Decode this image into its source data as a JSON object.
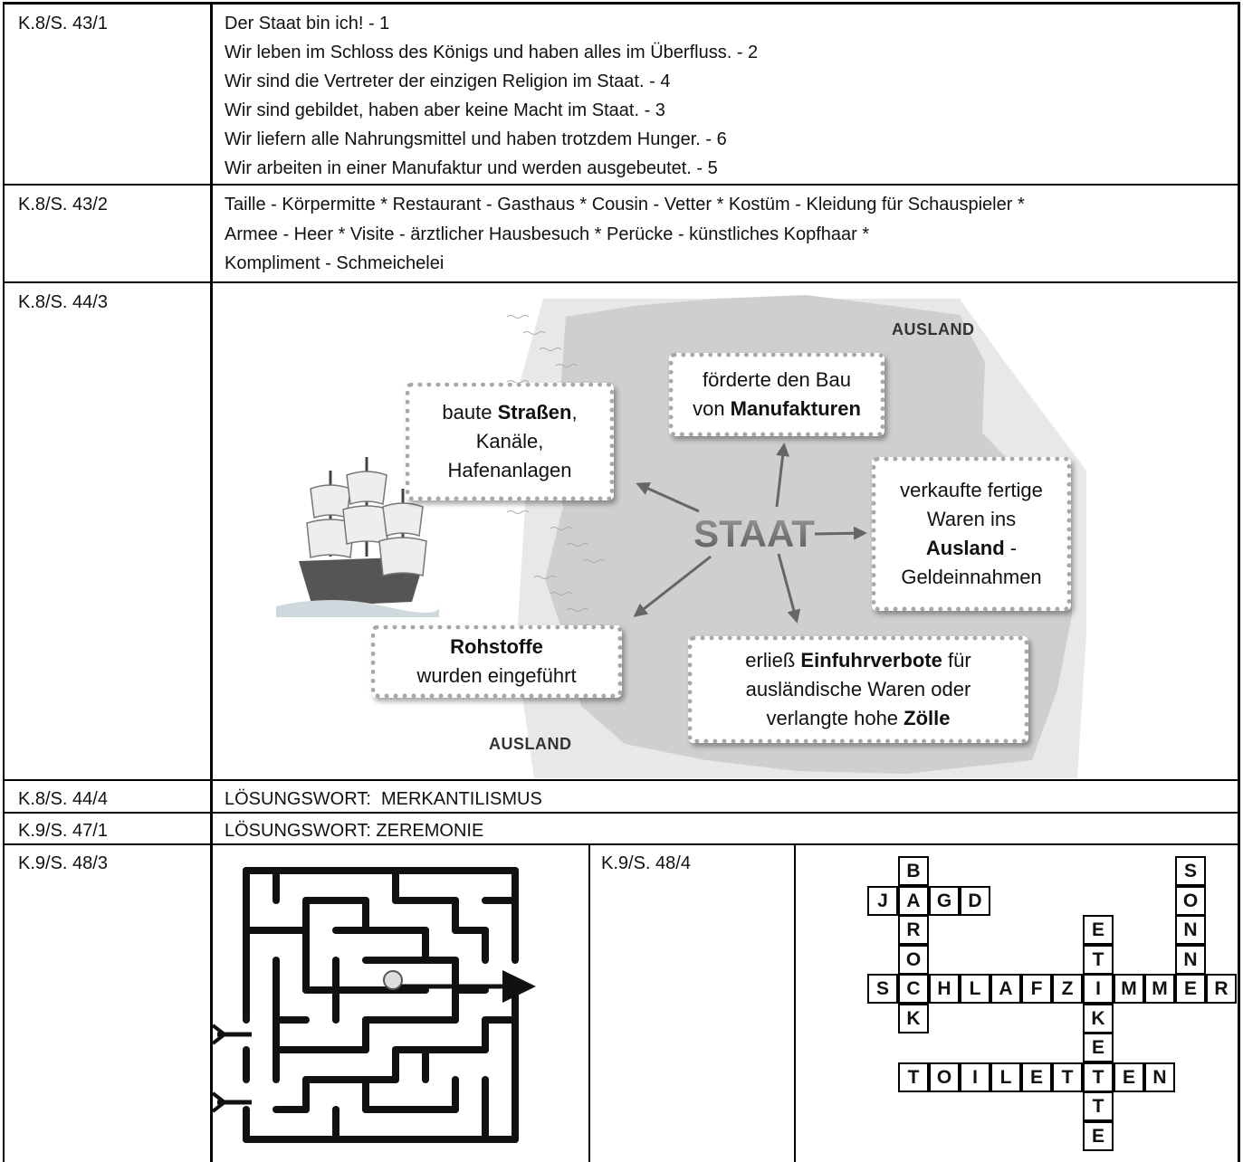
{
  "rows": [
    {
      "ref": "K.8/S. 43/1",
      "lines": [
        "Der Staat bin ich! - 1",
        "Wir leben im Schloss des Königs und haben alles im Überfluss. - 2",
        "Wir sind die Vertreter der einzigen Religion im Staat. - 4",
        "Wir sind gebildet, haben aber keine Macht im Staat. - 3",
        "Wir liefern alle Nahrungsmittel und haben trotzdem Hunger. - 6",
        "Wir arbeiten in einer Manufaktur und werden ausgebeutet. - 5"
      ]
    },
    {
      "ref": "K.8/S. 43/2",
      "lines": [
        "Taille - Körpermitte * Restaurant - Gasthaus * Cousin - Vetter * Kostüm - Kleidung für Schauspieler *",
        "Armee - Heer * Visite - ärztlicher Hausbesuch * Perücke - künstliches Kopfhaar *",
        "Kompliment - Schmeichelei"
      ]
    },
    {
      "ref": "K.8/S. 44/3",
      "diagram": {
        "center": "STAAT",
        "regions": [
          "AUSLAND",
          "AUSLAND"
        ],
        "boxes": [
          {
            "lines": [
              [
                "baute ",
                {
                  "text": "Straßen",
                  "bold": true
                },
                ","
              ],
              [
                "Kanäle,"
              ],
              [
                "Hafenanlagen"
              ]
            ]
          },
          {
            "lines": [
              [
                "förderte den Bau"
              ],
              [
                "von ",
                {
                  "text": "Manufakturen",
                  "bold": true
                }
              ]
            ]
          },
          {
            "lines": [
              [
                "verkaufte fertige"
              ],
              [
                "Waren ins"
              ],
              [
                {
                  "text": "Ausland",
                  "bold": true
                },
                " -"
              ],
              [
                "Geldeinnahmen"
              ]
            ]
          },
          {
            "lines": [
              [
                {
                  "text": "Rohstoffe",
                  "bold": true
                }
              ],
              [
                "wurden eingeführt"
              ]
            ]
          },
          {
            "lines": [
              [
                "erließ ",
                {
                  "text": "Einfuhrverbote",
                  "bold": true
                },
                " für"
              ],
              [
                "ausländische Waren oder"
              ],
              [
                "verlangte hohe ",
                {
                  "text": "Zölle",
                  "bold": true
                }
              ]
            ]
          }
        ]
      }
    },
    {
      "ref": "K.8/S. 44/4",
      "text": "LÖSUNGSWORT:  MERKANTILISMUS"
    },
    {
      "ref": "K.9/S. 47/1",
      "text": "LÖSUNGSWORT: ZEREMONIE"
    },
    {
      "cells": [
        {
          "ref": "K.9/S. 48/3"
        },
        {
          "ref": "K.9/S. 48/4",
          "crossword": [
            [
              null,
              "B",
              null,
              null,
              null,
              null,
              null,
              null,
              null,
              null,
              "S",
              null
            ],
            [
              "J",
              "A",
              "G",
              "D",
              null,
              null,
              null,
              null,
              null,
              null,
              "O",
              null
            ],
            [
              null,
              "R",
              null,
              null,
              null,
              null,
              null,
              "E",
              null,
              null,
              "N",
              null
            ],
            [
              null,
              "O",
              null,
              null,
              null,
              null,
              null,
              "T",
              null,
              null,
              "N",
              null
            ],
            [
              "S",
              "C",
              "H",
              "L",
              "A",
              "F",
              "Z",
              "I",
              "M",
              "M",
              "E",
              "R"
            ],
            [
              null,
              "K",
              null,
              null,
              null,
              null,
              null,
              "K",
              null,
              null,
              null,
              null
            ],
            [
              null,
              null,
              null,
              null,
              null,
              null,
              null,
              "E",
              null,
              null,
              null,
              null
            ],
            [
              null,
              "T",
              "O",
              "I",
              "L",
              "E",
              "T",
              "T",
              "E",
              "N",
              null,
              null
            ],
            [
              null,
              null,
              null,
              null,
              null,
              null,
              null,
              "T",
              null,
              null,
              null,
              null
            ],
            [
              null,
              null,
              null,
              null,
              null,
              null,
              null,
              "E",
              null,
              null,
              null,
              null
            ]
          ]
        }
      ]
    }
  ]
}
